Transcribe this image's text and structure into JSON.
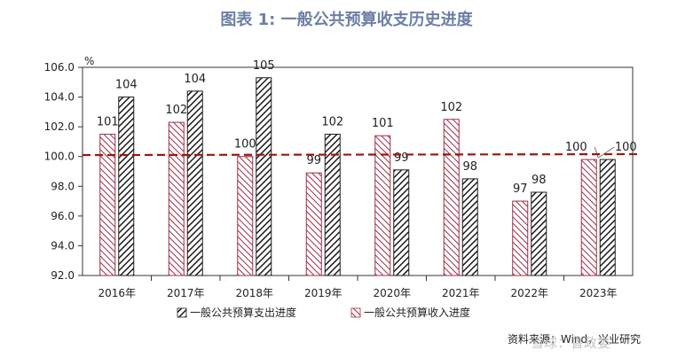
{
  "title": "图表 1:  一般公共预算收支历史进度",
  "source": "资料来源：Wind，兴业研究",
  "watermark": "雪球：鲁政委",
  "colors": {
    "expenditure": "#1c1c1c",
    "revenue": "#9b2f45",
    "reference_line": "#a01414",
    "title": "#6b7fa6"
  },
  "chart_data": {
    "type": "bar",
    "categories": [
      "2016年",
      "2017年",
      "2018年",
      "2019年",
      "2020年",
      "2021年",
      "2022年",
      "2023年"
    ],
    "ylabel": "%",
    "ylim": [
      92.0,
      106.0
    ],
    "yticks": [
      "92.0",
      "94.0",
      "96.0",
      "98.0",
      "100.0",
      "102.0",
      "104.0",
      "106.0"
    ],
    "ytick_values": [
      92,
      94,
      96,
      98,
      100,
      102,
      104,
      106
    ],
    "reference_line": 100.1,
    "grid": false,
    "legend_position": "bottom",
    "series": [
      {
        "name": "一般公共预算收入进度",
        "values": [
          101.5,
          102.3,
          100.0,
          98.9,
          101.4,
          102.5,
          97.0,
          99.8
        ],
        "labels": [
          "101",
          "102",
          "100",
          "99",
          "101",
          "102",
          "97",
          "100"
        ]
      },
      {
        "name": "一般公共预算支出进度",
        "values": [
          104.0,
          104.4,
          105.3,
          101.5,
          99.1,
          98.5,
          97.6,
          99.8
        ],
        "labels": [
          "104",
          "104",
          "105",
          "102",
          "99",
          "98",
          "98",
          "100"
        ]
      }
    ]
  }
}
